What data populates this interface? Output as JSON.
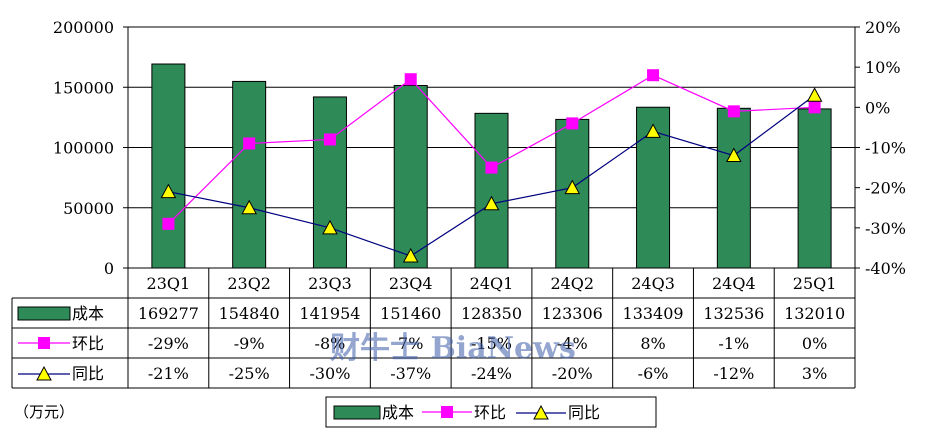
{
  "chart_data": {
    "type": "bar",
    "categories": [
      "23Q1",
      "23Q2",
      "23Q3",
      "23Q4",
      "24Q1",
      "24Q2",
      "24Q3",
      "24Q4",
      "25Q1"
    ],
    "series": [
      {
        "name": "成本",
        "type": "bar",
        "axis": "left",
        "color": "#2e8b57",
        "values": [
          169277,
          154840,
          141954,
          151460,
          128350,
          123306,
          133409,
          132536,
          132010
        ]
      },
      {
        "name": "环比",
        "type": "line",
        "axis": "right",
        "color": "#ff00ff",
        "marker": "square",
        "values": [
          -29,
          -9,
          -8,
          7,
          -15,
          -4,
          8,
          -1,
          0
        ],
        "labels": [
          "-29%",
          "-9%",
          "-8%",
          "7%",
          "-15%",
          "-4%",
          "8%",
          "-1%",
          "0%"
        ]
      },
      {
        "name": "同比",
        "type": "line",
        "axis": "right",
        "color": "#000080",
        "marker": "triangle",
        "values": [
          -21,
          -25,
          -30,
          -37,
          -24,
          -20,
          -6,
          -12,
          3
        ],
        "labels": [
          "-21%",
          "-25%",
          "-30%",
          "-37%",
          "-24%",
          "-20%",
          "-6%",
          "-12%",
          "3%"
        ]
      }
    ],
    "y_left": {
      "ticks": [
        "200000",
        "150000",
        "100000",
        "50000",
        "0"
      ],
      "ylim": [
        0,
        200000
      ]
    },
    "y_right": {
      "ticks": [
        "20%",
        "10%",
        "0%",
        "-10%",
        "-20%",
        "-30%",
        "-40%"
      ],
      "ylim": [
        -40,
        20
      ]
    },
    "unit_label": "（万元）",
    "legend": {
      "items": [
        "成本",
        "环比",
        "同比"
      ],
      "position": "bottom"
    },
    "watermark": "财牛士 BiaNews",
    "grid": true
  }
}
